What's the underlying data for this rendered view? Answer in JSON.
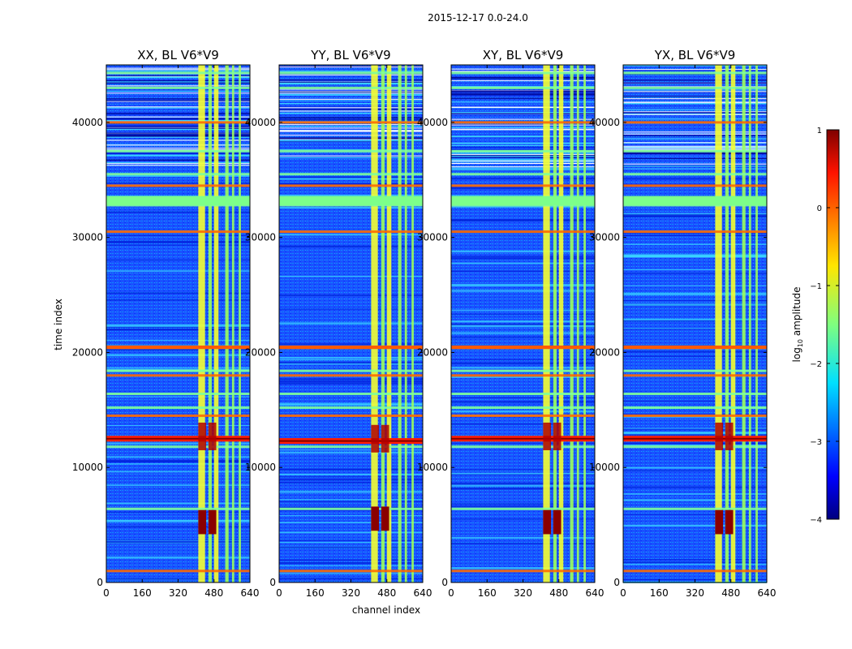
{
  "figure": {
    "suptitle": "2015-12-17 0.0-24.0",
    "xlabel": "channel index",
    "ylabel": "time index"
  },
  "chart_data": {
    "type": "heatmap",
    "x_range": [
      0,
      640
    ],
    "y_range": [
      0,
      45000
    ],
    "x_ticks": [
      0,
      160,
      320,
      480,
      640
    ],
    "y_ticks": [
      0,
      10000,
      20000,
      30000,
      40000
    ],
    "panels": [
      {
        "title": "XX, BL V6*V9",
        "flare_time": 12500,
        "strong_band_time": 5500
      },
      {
        "title": "YY, BL V6*V9",
        "flare_time": 12300,
        "strong_band_time": 5800
      },
      {
        "title": "XY, BL V6*V9",
        "flare_time": 12500,
        "strong_band_time": 5500
      },
      {
        "title": "YX, BL V6*V9",
        "flare_time": 12500,
        "strong_band_time": 5500
      }
    ],
    "rfi_channel_bands": [
      [
        410,
        440
      ],
      [
        455,
        470
      ],
      [
        480,
        500
      ],
      [
        530,
        545
      ],
      [
        560,
        570
      ],
      [
        590,
        600
      ]
    ],
    "rfi_time_bands": [
      1000,
      6400,
      11800,
      14500,
      15200,
      16400,
      18000,
      18400,
      20400,
      30500,
      32800,
      33400,
      34500,
      35500,
      37500,
      40000,
      43000,
      44300
    ],
    "colorbar": {
      "label": "log10 amplitude",
      "label_main": "log",
      "label_sub": "10",
      "label_rest": " amplitude",
      "range": [
        -4,
        1
      ],
      "ticks": [
        "−4",
        "−3",
        "−2",
        "−1",
        "0",
        "1"
      ],
      "tick_values": [
        -4,
        -3,
        -2,
        -1,
        0,
        1
      ],
      "colormap": "jet"
    }
  }
}
